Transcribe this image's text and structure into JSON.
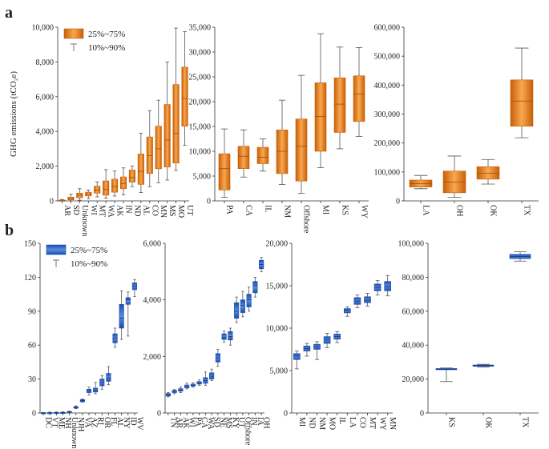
{
  "figure": {
    "panel_a_label": "a",
    "panel_b_label": "b",
    "colors": {
      "orange_light": "#f7a851",
      "orange_dark": "#c95f06",
      "blue_light": "#5a8ddf",
      "blue_dark": "#1a4db0",
      "median_orange": "#a34c06",
      "median_blue": "#0d2f78"
    }
  },
  "chart_data": [
    {
      "id": "a1",
      "type": "box",
      "style": "orange",
      "ylabel": "GHG emissions (tCO₂e)",
      "ylim": [
        0,
        10000
      ],
      "yticks": [
        0,
        2000,
        4000,
        6000,
        8000,
        10000
      ],
      "yticklabels": [
        "0",
        "2,000",
        "4,000",
        "6,000",
        "8,000",
        "10,000"
      ],
      "legend": {
        "box_label": "25%~75%",
        "whisker_label": "10%~90%"
      },
      "categories": [
        "AR",
        "SD",
        "Unknown",
        "WI",
        "MT",
        "WA",
        "AK",
        "IN",
        "ND",
        "AL",
        "CO",
        "MN",
        "MS",
        "MO",
        "UT"
      ],
      "boxes": [
        {
          "p10": 0,
          "q1": 10,
          "median": 30,
          "q3": 50,
          "p90": 80
        },
        {
          "p10": 10,
          "q1": 60,
          "median": 130,
          "q3": 220,
          "p90": 380
        },
        {
          "p10": 40,
          "q1": 180,
          "median": 330,
          "q3": 450,
          "p90": 700
        },
        {
          "p10": 130,
          "q1": 280,
          "median": 390,
          "q3": 500,
          "p90": 620
        },
        {
          "p10": 230,
          "q1": 450,
          "median": 620,
          "q3": 850,
          "p90": 1100
        },
        {
          "p10": 150,
          "q1": 330,
          "median": 660,
          "q3": 1150,
          "p90": 1800
        },
        {
          "p10": 280,
          "q1": 500,
          "median": 830,
          "q3": 1250,
          "p90": 1720
        },
        {
          "p10": 350,
          "q1": 700,
          "median": 1000,
          "q3": 1380,
          "p90": 1900
        },
        {
          "p10": 820,
          "q1": 1080,
          "median": 1350,
          "q3": 1780,
          "p90": 2000
        },
        {
          "p10": 480,
          "q1": 950,
          "median": 1700,
          "q3": 2700,
          "p90": 3900
        },
        {
          "p10": 820,
          "q1": 1580,
          "median": 2600,
          "q3": 3680,
          "p90": 5200
        },
        {
          "p10": 1050,
          "q1": 1850,
          "median": 3000,
          "q3": 4300,
          "p90": 5800
        },
        {
          "p10": 1200,
          "q1": 1950,
          "median": 3500,
          "q3": 5550,
          "p90": 8000
        },
        {
          "p10": 1750,
          "q1": 2180,
          "median": 3900,
          "q3": 6700,
          "p90": 9950
        },
        {
          "p10": 3200,
          "q1": 4300,
          "median": 5900,
          "q3": 7700,
          "p90": 9750
        }
      ]
    },
    {
      "id": "a2",
      "type": "box",
      "style": "orange",
      "ylim": [
        0,
        35000
      ],
      "yticks": [
        0,
        5000,
        10000,
        15000,
        20000,
        25000,
        30000,
        35000
      ],
      "yticklabels": [
        "0",
        "5,000",
        "10,000",
        "15,000",
        "20,000",
        "25,000",
        "30,000",
        "35,000"
      ],
      "categories": [
        "PA",
        "CA",
        "IL",
        "NM",
        "Offshore",
        "MI",
        "KS",
        "WY"
      ],
      "boxes": [
        {
          "p10": 700,
          "q1": 2200,
          "median": 6500,
          "q3": 9500,
          "p90": 14500
        },
        {
          "p10": 4800,
          "q1": 6500,
          "median": 9000,
          "q3": 11000,
          "p90": 14300
        },
        {
          "p10": 6000,
          "q1": 7500,
          "median": 8800,
          "q3": 10800,
          "p90": 12500
        },
        {
          "p10": 3300,
          "q1": 5500,
          "median": 10000,
          "q3": 14300,
          "p90": 20300
        },
        {
          "p10": 1500,
          "q1": 4000,
          "median": 11000,
          "q3": 16500,
          "p90": 25300
        },
        {
          "p10": 6700,
          "q1": 10000,
          "median": 17000,
          "q3": 23800,
          "p90": 33700
        },
        {
          "p10": 10500,
          "q1": 13800,
          "median": 19500,
          "q3": 24800,
          "p90": 31000
        },
        {
          "p10": 13000,
          "q1": 16000,
          "median": 21500,
          "q3": 25200,
          "p90": 30900
        }
      ]
    },
    {
      "id": "a3",
      "type": "box",
      "style": "orange",
      "ylim": [
        0,
        600000
      ],
      "yticks": [
        0,
        100000,
        200000,
        300000,
        400000,
        500000,
        600000
      ],
      "yticklabels": [
        "0",
        "100,000",
        "200,000",
        "300,000",
        "400,000",
        "500,000",
        "600,000"
      ],
      "categories": [
        "LA",
        "OH",
        "OK",
        "TX"
      ],
      "boxes": [
        {
          "p10": 42000,
          "q1": 48000,
          "median": 60000,
          "q3": 72000,
          "p90": 88000
        },
        {
          "p10": 12000,
          "q1": 28000,
          "median": 65000,
          "q3": 103000,
          "p90": 155000
        },
        {
          "p10": 58000,
          "q1": 75000,
          "median": 95000,
          "q3": 118000,
          "p90": 143000
        },
        {
          "p10": 218000,
          "q1": 258000,
          "median": 345000,
          "q3": 418000,
          "p90": 528000
        }
      ]
    },
    {
      "id": "b1",
      "type": "box",
      "style": "blue",
      "ylabel": "GHG emissions (tCO₂e)",
      "ylim": [
        0,
        150
      ],
      "yticks": [
        0,
        30,
        60,
        90,
        120,
        150
      ],
      "yticklabels": [
        "0",
        "30",
        "60",
        "90",
        "120",
        "150"
      ],
      "legend": {
        "box_label": "25%~75%",
        "whisker_label": "10%~90%"
      },
      "categories": [
        "DC",
        "VT",
        "ME",
        "NH",
        "Unknown",
        "NJH",
        "VA",
        "AZ",
        "RI",
        "OR",
        "FL",
        "AL",
        "NY",
        "ID",
        "WV"
      ],
      "boxes": [
        {
          "p10": 0,
          "q1": 0,
          "median": 0,
          "q3": 0.3,
          "p90": 0.5
        },
        {
          "p10": 0,
          "q1": 0,
          "median": 0.1,
          "q3": 0.4,
          "p90": 0.8
        },
        {
          "p10": 0,
          "q1": 0,
          "median": 0.2,
          "q3": 0.5,
          "p90": 0.9
        },
        {
          "p10": 0,
          "q1": 0.1,
          "median": 0.3,
          "q3": 0.6,
          "p90": 1
        },
        {
          "p10": 0.5,
          "q1": 0.8,
          "median": 1,
          "q3": 1.3,
          "p90": 1.6
        },
        {
          "p10": 3.8,
          "q1": 4.3,
          "median": 5,
          "q3": 5.6,
          "p90": 6.3
        },
        {
          "p10": 9.5,
          "q1": 10,
          "median": 11,
          "q3": 11.8,
          "p90": 12.5
        },
        {
          "p10": 16,
          "q1": 18,
          "median": 19.5,
          "q3": 21,
          "p90": 23
        },
        {
          "p10": 17,
          "q1": 18.5,
          "median": 20,
          "q3": 22,
          "p90": 27
        },
        {
          "p10": 21,
          "q1": 24,
          "median": 27,
          "q3": 30,
          "p90": 33
        },
        {
          "p10": 25,
          "q1": 28,
          "median": 31,
          "q3": 35,
          "p90": 41
        },
        {
          "p10": 58,
          "q1": 62,
          "median": 66,
          "q3": 70,
          "p90": 75
        },
        {
          "p10": 65,
          "q1": 75,
          "median": 84,
          "q3": 96,
          "p90": 108
        },
        {
          "p10": 68,
          "q1": 96,
          "median": 100,
          "q3": 102,
          "p90": 107
        },
        {
          "p10": 103,
          "q1": 109,
          "median": 112,
          "q3": 115,
          "p90": 118
        }
      ]
    },
    {
      "id": "b2",
      "type": "box",
      "style": "blue",
      "ylim": [
        0,
        6000
      ],
      "yticks": [
        0,
        2000,
        4000,
        6000
      ],
      "yticklabels": [
        "0",
        "2,000",
        "4,000",
        "6,000"
      ],
      "categories": [
        "TN",
        "AR",
        "AK",
        "WI",
        "PA",
        "CA",
        "WA",
        "SD",
        "NE",
        "MS",
        "KY",
        "UT",
        "Offshore",
        "IN",
        "IA",
        "OH"
      ],
      "boxes": [
        {
          "p10": 570,
          "q1": 600,
          "median": 640,
          "q3": 690,
          "p90": 720
        },
        {
          "p10": 680,
          "q1": 720,
          "median": 760,
          "q3": 800,
          "p90": 830
        },
        {
          "p10": 720,
          "q1": 770,
          "median": 810,
          "q3": 860,
          "p90": 920
        },
        {
          "p10": 850,
          "q1": 890,
          "median": 930,
          "q3": 990,
          "p90": 1050
        },
        {
          "p10": 910,
          "q1": 950,
          "median": 980,
          "q3": 1020,
          "p90": 1070
        },
        {
          "p10": 980,
          "q1": 1020,
          "median": 1060,
          "q3": 1110,
          "p90": 1170
        },
        {
          "p10": 980,
          "q1": 1050,
          "median": 1150,
          "q3": 1250,
          "p90": 1450
        },
        {
          "p10": 1150,
          "q1": 1200,
          "median": 1300,
          "q3": 1420,
          "p90": 1550
        },
        {
          "p10": 1650,
          "q1": 1800,
          "median": 1950,
          "q3": 2100,
          "p90": 2250
        },
        {
          "p10": 2500,
          "q1": 2600,
          "median": 2680,
          "q3": 2800,
          "p90": 2900
        },
        {
          "p10": 2400,
          "q1": 2580,
          "median": 2700,
          "q3": 2880,
          "p90": 3000
        },
        {
          "p10": 3200,
          "q1": 3350,
          "median": 3600,
          "q3": 3900,
          "p90": 4100
        },
        {
          "p10": 3400,
          "q1": 3550,
          "median": 3800,
          "q3": 4000,
          "p90": 4300
        },
        {
          "p10": 3600,
          "q1": 3750,
          "median": 4000,
          "q3": 4200,
          "p90": 4450
        },
        {
          "p10": 4100,
          "q1": 4250,
          "median": 4500,
          "q3": 4650,
          "p90": 4800
        },
        {
          "p10": 5000,
          "q1": 5100,
          "median": 5250,
          "q3": 5400,
          "p90": 5500
        }
      ]
    },
    {
      "id": "b3",
      "type": "box",
      "style": "blue",
      "ylim": [
        0,
        20000
      ],
      "yticks": [
        0,
        5000,
        10000,
        15000,
        20000
      ],
      "yticklabels": [
        "0",
        "5,000",
        "10,000",
        "15,000",
        "20,000"
      ],
      "categories": [
        "MI",
        "ND",
        "NM",
        "MO",
        "IL",
        "LA",
        "CO",
        "MT",
        "WY",
        "MN"
      ],
      "boxes": [
        {
          "p10": 5200,
          "q1": 6300,
          "median": 6700,
          "q3": 7000,
          "p90": 7300
        },
        {
          "p10": 6700,
          "q1": 7300,
          "median": 7600,
          "q3": 7900,
          "p90": 8200
        },
        {
          "p10": 6300,
          "q1": 7500,
          "median": 7800,
          "q3": 8100,
          "p90": 8400
        },
        {
          "p10": 7700,
          "q1": 8200,
          "median": 8600,
          "q3": 9000,
          "p90": 9400
        },
        {
          "p10": 8300,
          "q1": 8700,
          "median": 9000,
          "q3": 9300,
          "p90": 9600
        },
        {
          "p10": 11400,
          "q1": 11800,
          "median": 12100,
          "q3": 12300,
          "p90": 12500
        },
        {
          "p10": 12400,
          "q1": 12800,
          "median": 13200,
          "q3": 13600,
          "p90": 13900
        },
        {
          "p10": 12600,
          "q1": 13000,
          "median": 13300,
          "q3": 13700,
          "p90": 14100
        },
        {
          "p10": 13900,
          "q1": 14400,
          "median": 14800,
          "q3": 15200,
          "p90": 15600
        },
        {
          "p10": 13800,
          "q1": 14400,
          "median": 14900,
          "q3": 15500,
          "p90": 16200
        }
      ]
    },
    {
      "id": "b4",
      "type": "box",
      "style": "blue",
      "ylim": [
        0,
        100000
      ],
      "yticks": [
        0,
        20000,
        40000,
        60000,
        80000,
        100000
      ],
      "yticklabels": [
        "0",
        "20,000",
        "40,000",
        "60,000",
        "80,000",
        "100,000"
      ],
      "categories": [
        "KS",
        "OK",
        "TX"
      ],
      "boxes": [
        {
          "p10": 18500,
          "q1": 25500,
          "median": 25800,
          "q3": 26200,
          "p90": 26500
        },
        {
          "p10": 27000,
          "q1": 27500,
          "median": 27900,
          "q3": 28300,
          "p90": 28700
        },
        {
          "p10": 89500,
          "q1": 91000,
          "median": 92300,
          "q3": 93500,
          "p90": 95000
        }
      ]
    }
  ]
}
